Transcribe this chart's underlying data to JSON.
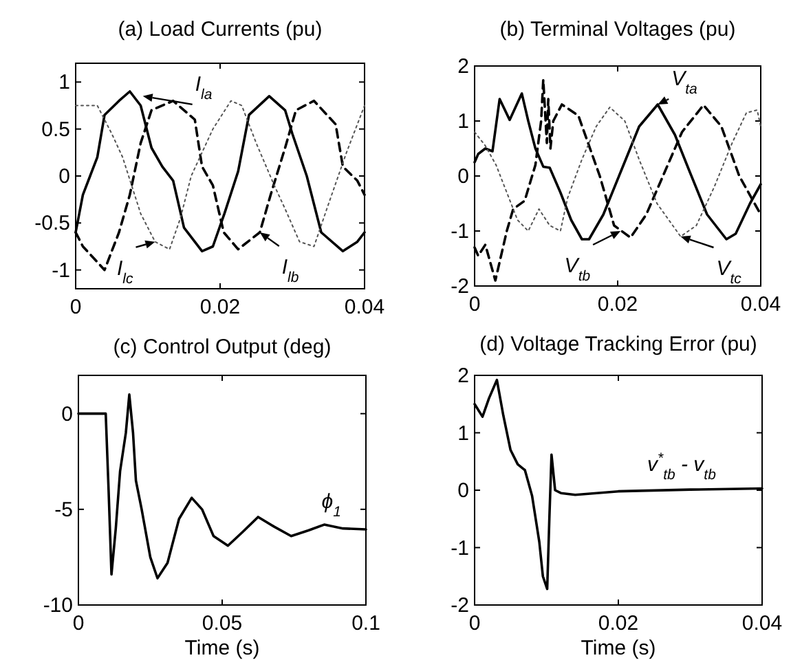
{
  "chart_data": [
    {
      "type": "line",
      "title": "(a) Load Currents (pu)",
      "xlim": [
        0,
        0.04
      ],
      "ylim": [
        -1.2,
        1.2
      ],
      "xticks": [
        0,
        0.02,
        0.04
      ],
      "yticks": [
        -1,
        -0.5,
        0,
        0.5,
        1
      ],
      "annotations": [
        {
          "text": "I$_{la}$",
          "x": 0.0093,
          "y": 0.85
        },
        {
          "text": "I$_{lc}$",
          "x": 0.011,
          "y": -0.7
        },
        {
          "text": "I$_{lb}$",
          "x": 0.0255,
          "y": -0.6
        }
      ],
      "series": [
        {
          "color": "#000000",
          "line_style": "solid",
          "x": [
            0,
            0.001,
            0.002,
            0.003,
            0.004,
            0.006,
            0.0075,
            0.009,
            0.0105,
            0.012,
            0.0135,
            0.015,
            0.0175,
            0.019,
            0.0206,
            0.0225,
            0.024,
            0.0268,
            0.029,
            0.03,
            0.032,
            0.034,
            0.037,
            0.039,
            0.04
          ],
          "values": [
            -0.6,
            -0.2,
            0,
            0.2,
            0.65,
            0.8,
            0.9,
            0.75,
            0.3,
            0.1,
            -0.05,
            -0.55,
            -0.8,
            -0.75,
            -0.4,
            0.05,
            0.65,
            0.85,
            0.7,
            0.45,
            0,
            -0.6,
            -0.8,
            -0.7,
            -0.6
          ]
        },
        {
          "color": "#000000",
          "line_style": "dashed",
          "x": [
            0,
            0.001,
            0.004,
            0.006,
            0.0075,
            0.009,
            0.0105,
            0.0135,
            0.0165,
            0.0175,
            0.019,
            0.0205,
            0.0225,
            0.0255,
            0.027,
            0.029,
            0.0305,
            0.033,
            0.036,
            0.037,
            0.039,
            0.04
          ],
          "values": [
            -0.6,
            -0.75,
            -1,
            -0.6,
            -0.2,
            0.35,
            0.7,
            0.8,
            0.6,
            0.1,
            -0.1,
            -0.6,
            -0.78,
            -0.6,
            -0.2,
            0.3,
            0.7,
            0.8,
            0.55,
            0.1,
            -0.05,
            -0.2
          ]
        },
        {
          "color": "#555555",
          "line_style": "dotted",
          "x": [
            0,
            0.003,
            0.005,
            0.0065,
            0.009,
            0.011,
            0.013,
            0.0145,
            0.016,
            0.019,
            0.0215,
            0.023,
            0.025,
            0.0275,
            0.029,
            0.031,
            0.033,
            0.035,
            0.0375,
            0.04
          ],
          "values": [
            0.75,
            0.75,
            0.45,
            0.2,
            -0.4,
            -0.7,
            -0.78,
            -0.45,
            0,
            0.5,
            0.8,
            0.75,
            0.35,
            -0.1,
            -0.35,
            -0.7,
            -0.75,
            -0.3,
            0.25,
            0.75
          ]
        }
      ]
    },
    {
      "type": "line",
      "title": "(b) Terminal Voltages (pu)",
      "xlim": [
        0,
        0.04
      ],
      "ylim": [
        -2,
        2
      ],
      "xticks": [
        0,
        0.02,
        0.04
      ],
      "yticks": [
        -2,
        -1,
        0,
        1,
        2
      ],
      "annotations": [
        {
          "text": "V$_{ta}$",
          "x": 0.0256,
          "y": 1.3
        },
        {
          "text": "V$_{tb}$",
          "x": 0.0204,
          "y": -1
        },
        {
          "text": "V$_{tc}$",
          "x": 0.0288,
          "y": -1.1
        }
      ],
      "series": [
        {
          "color": "#000000",
          "line_style": "solid",
          "x": [
            0,
            0.0005,
            0.0015,
            0.0025,
            0.0035,
            0.0049,
            0.0066,
            0.0075,
            0.0085,
            0.0096,
            0.0105,
            0.012,
            0.0135,
            0.015,
            0.016,
            0.018,
            0.0205,
            0.023,
            0.0256,
            0.028,
            0.03,
            0.0325,
            0.0352,
            0.0365,
            0.0385,
            0.04
          ],
          "values": [
            0.25,
            0.4,
            0.5,
            0.45,
            1.4,
            1.02,
            1.5,
            1,
            0.5,
            0.17,
            0.15,
            -0.3,
            -0.8,
            -1.15,
            -1.15,
            -0.7,
            0.1,
            0.9,
            1.3,
            0.75,
            0.1,
            -0.7,
            -1.15,
            -1.05,
            -0.5,
            -0.15
          ]
        },
        {
          "color": "#000000",
          "line_style": "dashed",
          "x": [
            0,
            0.0005,
            0.0015,
            0.0029,
            0.0045,
            0.0054,
            0.007,
            0.0085,
            0.0093,
            0.0096,
            0.0101,
            0.0103,
            0.0106,
            0.011,
            0.0122,
            0.0145,
            0.0175,
            0.0195,
            0.0218,
            0.024,
            0.0265,
            0.029,
            0.032,
            0.0345,
            0.037,
            0.04
          ],
          "values": [
            -1.3,
            -1.45,
            -1.25,
            -1.9,
            -1,
            -0.6,
            -0.45,
            0.2,
            1,
            1.75,
            0.6,
            1.4,
            0.5,
            1,
            1.3,
            1.1,
            0,
            -0.9,
            -1.12,
            -0.7,
            0.05,
            0.8,
            1.29,
            0.9,
            0,
            -0.7
          ]
        },
        {
          "color": "#555555",
          "line_style": "dotted",
          "x": [
            0,
            0.0015,
            0.003,
            0.0045,
            0.006,
            0.0075,
            0.009,
            0.0105,
            0.012,
            0.013,
            0.015,
            0.017,
            0.0189,
            0.021,
            0.023,
            0.0255,
            0.0288,
            0.031,
            0.0335,
            0.036,
            0.038,
            0.0395,
            0.04
          ],
          "values": [
            0.8,
            0.55,
            0.2,
            -0.3,
            -0.8,
            -1,
            -0.6,
            -0.9,
            -1,
            -0.4,
            0.3,
            0.9,
            1.25,
            1,
            0.3,
            -0.5,
            -1.1,
            -0.9,
            -0.2,
            0.6,
            1.15,
            1.2,
            0.9
          ]
        }
      ]
    },
    {
      "type": "line",
      "title": "(c) Control Output (deg)",
      "xlabel": "Time (s)",
      "xlim": [
        0,
        0.1
      ],
      "ylim": [
        -10,
        2
      ],
      "xticks": [
        0,
        0.05,
        0.1
      ],
      "yticks": [
        -10,
        -5,
        0
      ],
      "annotations": [
        {
          "text": "ϕ$_{1}$",
          "x": 0.087,
          "y": -5.8
        }
      ],
      "series": [
        {
          "color": "#000000",
          "line_style": "solid",
          "x": [
            0,
            0.0095,
            0.0105,
            0.0115,
            0.013,
            0.0145,
            0.0165,
            0.0177,
            0.019,
            0.02,
            0.022,
            0.025,
            0.0275,
            0.031,
            0.035,
            0.0394,
            0.043,
            0.047,
            0.052,
            0.057,
            0.0625,
            0.068,
            0.074,
            0.08,
            0.0855,
            0.092,
            0.1
          ],
          "values": [
            0,
            0,
            -4,
            -8.4,
            -6,
            -3,
            -1,
            1,
            -1,
            -3.5,
            -5,
            -7.5,
            -8.6,
            -7.8,
            -5.5,
            -4.4,
            -5,
            -6.4,
            -6.9,
            -6.2,
            -5.4,
            -5.9,
            -6.4,
            -6.1,
            -5.8,
            -6,
            -6.05
          ]
        }
      ]
    },
    {
      "type": "line",
      "title": "(d) Voltage Tracking Error (pu)",
      "xlabel": "Time (s)",
      "xlim": [
        0,
        0.04
      ],
      "ylim": [
        -2,
        2
      ],
      "xticks": [
        0,
        0.02,
        0.04
      ],
      "yticks": [
        -2,
        -1,
        0,
        1,
        2
      ],
      "annotations": [
        {
          "text": "v$^{*}$$_{tb}$ - v$_{tb}$",
          "x": 0.0265,
          "y": 0
        }
      ],
      "series": [
        {
          "color": "#000000",
          "line_style": "solid",
          "x": [
            0,
            0.0011,
            0.002,
            0.0031,
            0.004,
            0.005,
            0.006,
            0.007,
            0.008,
            0.009,
            0.0095,
            0.0101,
            0.0104,
            0.0107,
            0.0112,
            0.012,
            0.014,
            0.02,
            0.03,
            0.04
          ],
          "values": [
            1.5,
            1.28,
            1.6,
            1.92,
            1.3,
            0.7,
            0.45,
            0.35,
            -0.1,
            -0.9,
            -1.5,
            -1.72,
            -0.5,
            0.62,
            0,
            -0.05,
            -0.08,
            -0.02,
            0.01,
            0.03
          ]
        }
      ]
    }
  ]
}
